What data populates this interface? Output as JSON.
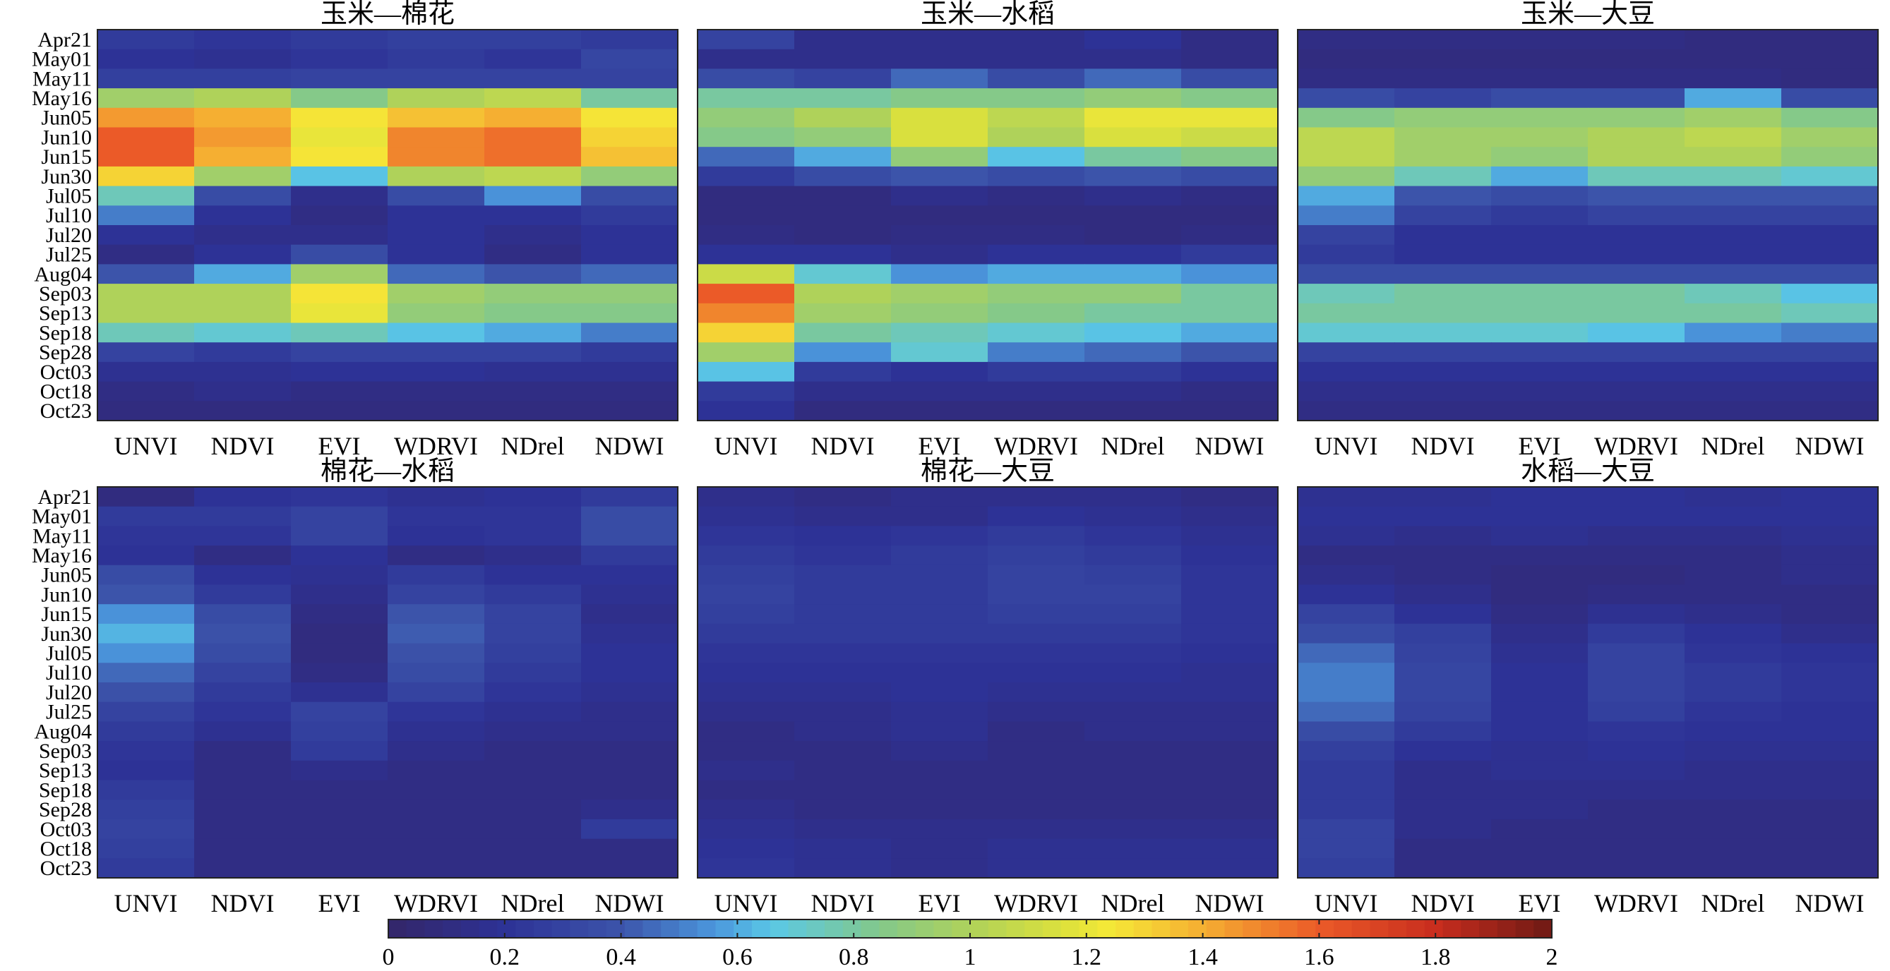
{
  "chart_data": {
    "type": "heatmap",
    "colormap": "parula",
    "colorbar": {
      "min": 0,
      "max": 2,
      "ticks": [
        "0",
        "0.2",
        "0.4",
        "0.6",
        "0.8",
        "1",
        "1.2",
        "1.4",
        "1.6",
        "1.8",
        "2"
      ],
      "placement": "bottom"
    },
    "rows": [
      "Apr21",
      "May01",
      "May11",
      "May16",
      "Jun05",
      "Jun10",
      "Jun15",
      "Jun30",
      "Jul05",
      "Jul10",
      "Jul20",
      "Jul25",
      "Aug04",
      "Sep03",
      "Sep13",
      "Sep18",
      "Sep28",
      "Oct03",
      "Oct18",
      "Oct23"
    ],
    "columns": [
      "UNVI",
      "NDVI",
      "EVI",
      "WDRVI",
      "NDrel",
      "NDWI"
    ],
    "panels": [
      {
        "title": "玉米—棉花",
        "values": [
          [
            0.25,
            0.22,
            0.25,
            0.28,
            0.28,
            0.25
          ],
          [
            0.2,
            0.18,
            0.22,
            0.25,
            0.22,
            0.32
          ],
          [
            0.28,
            0.28,
            0.3,
            0.3,
            0.3,
            0.3
          ],
          [
            0.95,
            1.0,
            0.85,
            1.0,
            1.05,
            0.8
          ],
          [
            1.45,
            1.4,
            1.25,
            1.35,
            1.4,
            1.25
          ],
          [
            1.6,
            1.45,
            1.2,
            1.5,
            1.55,
            1.3
          ],
          [
            1.6,
            1.4,
            1.25,
            1.5,
            1.55,
            1.35
          ],
          [
            1.3,
            0.95,
            0.65,
            1.0,
            1.05,
            0.9
          ],
          [
            0.75,
            0.35,
            0.15,
            0.35,
            0.55,
            0.35
          ],
          [
            0.5,
            0.2,
            0.12,
            0.2,
            0.2,
            0.25
          ],
          [
            0.2,
            0.15,
            0.15,
            0.2,
            0.15,
            0.2
          ],
          [
            0.12,
            0.2,
            0.35,
            0.2,
            0.12,
            0.2
          ],
          [
            0.4,
            0.6,
            0.95,
            0.45,
            0.4,
            0.45
          ],
          [
            1.0,
            1.0,
            1.25,
            0.95,
            0.9,
            0.9
          ],
          [
            1.0,
            1.0,
            1.2,
            0.9,
            0.85,
            0.85
          ],
          [
            0.75,
            0.7,
            0.75,
            0.65,
            0.6,
            0.5
          ],
          [
            0.3,
            0.25,
            0.3,
            0.3,
            0.3,
            0.25
          ],
          [
            0.18,
            0.18,
            0.2,
            0.2,
            0.18,
            0.18
          ],
          [
            0.12,
            0.15,
            0.12,
            0.12,
            0.12,
            0.12
          ],
          [
            0.1,
            0.1,
            0.1,
            0.1,
            0.1,
            0.1
          ]
        ]
      },
      {
        "title": "玉米—水稻",
        "values": [
          [
            0.3,
            0.15,
            0.15,
            0.15,
            0.2,
            0.12
          ],
          [
            0.15,
            0.15,
            0.15,
            0.15,
            0.15,
            0.12
          ],
          [
            0.35,
            0.3,
            0.45,
            0.35,
            0.45,
            0.35
          ],
          [
            0.8,
            0.8,
            0.85,
            0.85,
            0.9,
            0.85
          ],
          [
            0.9,
            1.0,
            1.15,
            1.05,
            1.2,
            1.2
          ],
          [
            0.85,
            0.9,
            1.15,
            1.0,
            1.15,
            1.1
          ],
          [
            0.45,
            0.6,
            0.9,
            0.65,
            0.8,
            0.85
          ],
          [
            0.25,
            0.35,
            0.4,
            0.35,
            0.4,
            0.35
          ],
          [
            0.1,
            0.1,
            0.15,
            0.12,
            0.15,
            0.12
          ],
          [
            0.1,
            0.1,
            0.1,
            0.1,
            0.1,
            0.1
          ],
          [
            0.12,
            0.1,
            0.12,
            0.12,
            0.1,
            0.12
          ],
          [
            0.2,
            0.2,
            0.15,
            0.2,
            0.2,
            0.25
          ],
          [
            1.1,
            0.7,
            0.55,
            0.6,
            0.6,
            0.55
          ],
          [
            1.6,
            1.0,
            0.95,
            0.9,
            0.9,
            0.8
          ],
          [
            1.5,
            0.95,
            0.9,
            0.85,
            0.8,
            0.8
          ],
          [
            1.3,
            0.8,
            0.75,
            0.7,
            0.65,
            0.6
          ],
          [
            0.95,
            0.55,
            0.7,
            0.5,
            0.45,
            0.4
          ],
          [
            0.65,
            0.25,
            0.2,
            0.25,
            0.25,
            0.2
          ],
          [
            0.25,
            0.15,
            0.15,
            0.15,
            0.15,
            0.12
          ],
          [
            0.2,
            0.1,
            0.1,
            0.1,
            0.1,
            0.1
          ]
        ]
      },
      {
        "title": "玉米—大豆",
        "values": [
          [
            0.12,
            0.12,
            0.12,
            0.12,
            0.1,
            0.1
          ],
          [
            0.1,
            0.1,
            0.1,
            0.1,
            0.1,
            0.1
          ],
          [
            0.12,
            0.12,
            0.12,
            0.12,
            0.12,
            0.1
          ],
          [
            0.35,
            0.3,
            0.35,
            0.35,
            0.6,
            0.35
          ],
          [
            0.85,
            0.9,
            0.9,
            0.9,
            0.95,
            0.85
          ],
          [
            1.05,
            0.95,
            0.95,
            1.0,
            1.05,
            0.95
          ],
          [
            1.05,
            0.95,
            0.9,
            1.0,
            1.0,
            0.9
          ],
          [
            0.9,
            0.75,
            0.6,
            0.75,
            0.75,
            0.7
          ],
          [
            0.6,
            0.4,
            0.35,
            0.4,
            0.4,
            0.4
          ],
          [
            0.5,
            0.3,
            0.25,
            0.3,
            0.3,
            0.3
          ],
          [
            0.3,
            0.2,
            0.2,
            0.2,
            0.2,
            0.2
          ],
          [
            0.25,
            0.2,
            0.2,
            0.2,
            0.2,
            0.2
          ],
          [
            0.35,
            0.35,
            0.35,
            0.35,
            0.35,
            0.35
          ],
          [
            0.75,
            0.8,
            0.8,
            0.8,
            0.75,
            0.65
          ],
          [
            0.8,
            0.8,
            0.8,
            0.8,
            0.8,
            0.75
          ],
          [
            0.7,
            0.7,
            0.7,
            0.65,
            0.55,
            0.5
          ],
          [
            0.3,
            0.3,
            0.3,
            0.3,
            0.3,
            0.3
          ],
          [
            0.2,
            0.2,
            0.2,
            0.2,
            0.2,
            0.2
          ],
          [
            0.15,
            0.15,
            0.15,
            0.15,
            0.15,
            0.15
          ],
          [
            0.12,
            0.12,
            0.12,
            0.12,
            0.12,
            0.12
          ]
        ]
      },
      {
        "title": "棉花—水稻",
        "values": [
          [
            0.1,
            0.2,
            0.22,
            0.18,
            0.2,
            0.25
          ],
          [
            0.25,
            0.25,
            0.3,
            0.22,
            0.22,
            0.35
          ],
          [
            0.22,
            0.22,
            0.3,
            0.2,
            0.22,
            0.35
          ],
          [
            0.2,
            0.12,
            0.2,
            0.12,
            0.15,
            0.25
          ],
          [
            0.35,
            0.2,
            0.18,
            0.25,
            0.2,
            0.2
          ],
          [
            0.4,
            0.25,
            0.15,
            0.3,
            0.25,
            0.18
          ],
          [
            0.55,
            0.35,
            0.12,
            0.4,
            0.3,
            0.15
          ],
          [
            0.62,
            0.38,
            0.1,
            0.42,
            0.3,
            0.18
          ],
          [
            0.55,
            0.35,
            0.1,
            0.38,
            0.28,
            0.2
          ],
          [
            0.45,
            0.3,
            0.12,
            0.35,
            0.25,
            0.2
          ],
          [
            0.38,
            0.25,
            0.18,
            0.3,
            0.22,
            0.18
          ],
          [
            0.3,
            0.22,
            0.3,
            0.22,
            0.18,
            0.15
          ],
          [
            0.25,
            0.18,
            0.28,
            0.18,
            0.15,
            0.15
          ],
          [
            0.22,
            0.12,
            0.25,
            0.15,
            0.12,
            0.12
          ],
          [
            0.2,
            0.12,
            0.15,
            0.12,
            0.12,
            0.12
          ],
          [
            0.25,
            0.12,
            0.12,
            0.12,
            0.12,
            0.12
          ],
          [
            0.28,
            0.12,
            0.12,
            0.12,
            0.12,
            0.15
          ],
          [
            0.3,
            0.12,
            0.12,
            0.12,
            0.12,
            0.25
          ],
          [
            0.28,
            0.12,
            0.12,
            0.12,
            0.12,
            0.12
          ],
          [
            0.25,
            0.12,
            0.12,
            0.12,
            0.12,
            0.12
          ]
        ]
      },
      {
        "title": "棉花—大豆",
        "values": [
          [
            0.15,
            0.12,
            0.15,
            0.15,
            0.15,
            0.12
          ],
          [
            0.18,
            0.15,
            0.15,
            0.2,
            0.18,
            0.15
          ],
          [
            0.22,
            0.2,
            0.22,
            0.25,
            0.22,
            0.18
          ],
          [
            0.25,
            0.22,
            0.25,
            0.28,
            0.25,
            0.2
          ],
          [
            0.28,
            0.25,
            0.25,
            0.3,
            0.28,
            0.22
          ],
          [
            0.3,
            0.25,
            0.25,
            0.3,
            0.3,
            0.22
          ],
          [
            0.28,
            0.25,
            0.25,
            0.28,
            0.28,
            0.22
          ],
          [
            0.25,
            0.25,
            0.25,
            0.25,
            0.25,
            0.22
          ],
          [
            0.22,
            0.22,
            0.22,
            0.22,
            0.22,
            0.2
          ],
          [
            0.2,
            0.2,
            0.2,
            0.2,
            0.2,
            0.18
          ],
          [
            0.18,
            0.18,
            0.2,
            0.18,
            0.18,
            0.18
          ],
          [
            0.15,
            0.15,
            0.18,
            0.15,
            0.15,
            0.15
          ],
          [
            0.12,
            0.15,
            0.18,
            0.12,
            0.15,
            0.15
          ],
          [
            0.12,
            0.12,
            0.15,
            0.12,
            0.12,
            0.12
          ],
          [
            0.15,
            0.12,
            0.12,
            0.12,
            0.12,
            0.12
          ],
          [
            0.12,
            0.12,
            0.12,
            0.12,
            0.12,
            0.12
          ],
          [
            0.15,
            0.12,
            0.12,
            0.12,
            0.12,
            0.12
          ],
          [
            0.18,
            0.15,
            0.15,
            0.15,
            0.15,
            0.15
          ],
          [
            0.2,
            0.18,
            0.15,
            0.18,
            0.18,
            0.18
          ],
          [
            0.22,
            0.18,
            0.15,
            0.18,
            0.18,
            0.18
          ]
        ]
      },
      {
        "title": "水稻—大豆",
        "values": [
          [
            0.18,
            0.18,
            0.2,
            0.2,
            0.18,
            0.2
          ],
          [
            0.2,
            0.2,
            0.2,
            0.2,
            0.2,
            0.2
          ],
          [
            0.18,
            0.15,
            0.18,
            0.15,
            0.15,
            0.18
          ],
          [
            0.12,
            0.12,
            0.12,
            0.12,
            0.12,
            0.15
          ],
          [
            0.15,
            0.12,
            0.1,
            0.1,
            0.12,
            0.15
          ],
          [
            0.2,
            0.15,
            0.1,
            0.12,
            0.12,
            0.12
          ],
          [
            0.3,
            0.2,
            0.12,
            0.18,
            0.15,
            0.12
          ],
          [
            0.35,
            0.28,
            0.15,
            0.25,
            0.2,
            0.15
          ],
          [
            0.45,
            0.3,
            0.18,
            0.3,
            0.22,
            0.2
          ],
          [
            0.5,
            0.32,
            0.2,
            0.3,
            0.25,
            0.22
          ],
          [
            0.5,
            0.32,
            0.2,
            0.3,
            0.25,
            0.22
          ],
          [
            0.45,
            0.3,
            0.2,
            0.28,
            0.22,
            0.2
          ],
          [
            0.35,
            0.25,
            0.2,
            0.22,
            0.2,
            0.2
          ],
          [
            0.28,
            0.2,
            0.18,
            0.2,
            0.18,
            0.18
          ],
          [
            0.25,
            0.15,
            0.18,
            0.18,
            0.15,
            0.15
          ],
          [
            0.25,
            0.15,
            0.15,
            0.15,
            0.15,
            0.15
          ],
          [
            0.25,
            0.15,
            0.15,
            0.12,
            0.12,
            0.12
          ],
          [
            0.3,
            0.15,
            0.12,
            0.12,
            0.12,
            0.12
          ],
          [
            0.3,
            0.12,
            0.12,
            0.12,
            0.12,
            0.12
          ],
          [
            0.28,
            0.12,
            0.12,
            0.12,
            0.12,
            0.12
          ]
        ]
      }
    ]
  }
}
